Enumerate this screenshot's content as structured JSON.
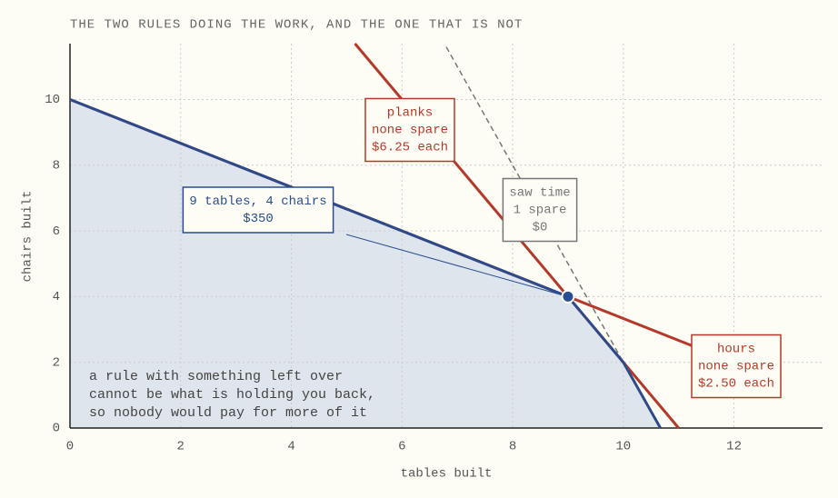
{
  "chart_data": {
    "type": "line",
    "title": "THE TWO RULES DOING THE WORK, AND THE ONE THAT IS NOT",
    "x_label": "tables built",
    "y_label": "chairs built",
    "xlim": [
      0,
      13.6
    ],
    "ylim": [
      0,
      11.7
    ],
    "xticks": [
      0,
      2,
      4,
      6,
      8,
      10,
      12
    ],
    "yticks": [
      0,
      2,
      4,
      6,
      8,
      10
    ],
    "grid": true,
    "feasible_region": {
      "color": "#dfe5ec",
      "edge_color": "#2d4a8a",
      "x": [
        0,
        0,
        9,
        10,
        10.67
      ],
      "y": [
        0,
        10,
        4,
        2,
        0
      ]
    },
    "series": [
      {
        "name": "planks",
        "notes": [
          "none spare",
          "$6.25 each"
        ],
        "color": "#b5392a",
        "dashed": false,
        "x": [
          5.15,
          11
        ],
        "values": [
          11.7,
          0
        ]
      },
      {
        "name": "hours",
        "notes": [
          "none spare",
          "$2.50 each"
        ],
        "color": "#b5392a",
        "dashed": false,
        "x": [
          0,
          11.25
        ],
        "values": [
          10,
          2.5
        ]
      },
      {
        "name": "saw time",
        "notes": [
          "1 spare",
          "$0"
        ],
        "color": "#777777",
        "dashed": true,
        "x": [
          6.8,
          10
        ],
        "values": [
          11.6,
          2
        ]
      }
    ],
    "optimum": {
      "x": 9,
      "y": 4,
      "color": "#2a4d8f",
      "label": [
        "9 tables, 4 chairs",
        "$350"
      ]
    },
    "note": [
      "a rule with something left over",
      "cannot be what is holding you back,",
      "so nobody would pay for more of it"
    ]
  }
}
